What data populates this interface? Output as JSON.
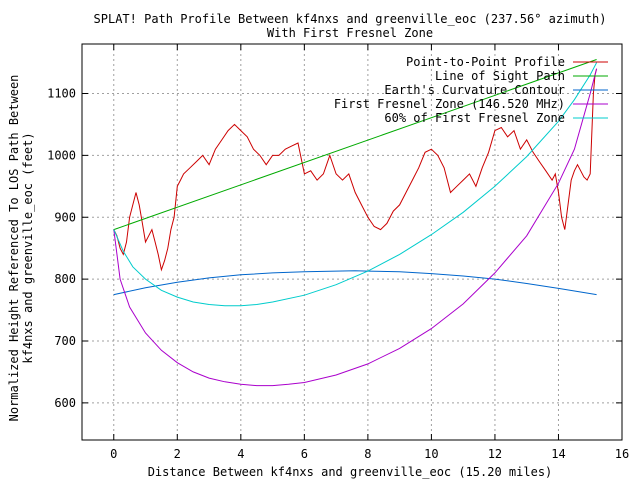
{
  "chart_data": {
    "type": "line",
    "title": "SPLAT! Path Profile Between kf4nxs and greenville_eoc (237.56° azimuth)",
    "subtitle": "With First Fresnel Zone",
    "xlabel": "Distance Between kf4nxs and greenville_eoc (15.20 miles)",
    "ylabel_line1": "Normalized Height Referenced To LOS Path Between",
    "ylabel_line2": "kf4nxs and greenville_eoc (feet)",
    "xlim": [
      -1,
      16
    ],
    "ylim": [
      540,
      1180
    ],
    "xticks": [
      0,
      2,
      4,
      6,
      8,
      10,
      12,
      14,
      16
    ],
    "yticks": [
      600,
      700,
      800,
      900,
      1000,
      1100
    ],
    "grid": true,
    "legend_position": "top-right",
    "series": [
      {
        "name": "Point-to-Point Profile",
        "color": "#cc0000",
        "x": [
          0,
          0.1,
          0.2,
          0.3,
          0.4,
          0.5,
          0.6,
          0.7,
          0.8,
          0.9,
          1.0,
          1.1,
          1.2,
          1.3,
          1.4,
          1.5,
          1.6,
          1.7,
          1.8,
          1.9,
          2.0,
          2.1,
          2.2,
          2.4,
          2.6,
          2.8,
          3.0,
          3.2,
          3.4,
          3.6,
          3.8,
          4.0,
          4.2,
          4.4,
          4.6,
          4.8,
          5.0,
          5.2,
          5.4,
          5.6,
          5.8,
          6.0,
          6.2,
          6.4,
          6.6,
          6.8,
          7.0,
          7.2,
          7.4,
          7.6,
          7.8,
          8.0,
          8.2,
          8.4,
          8.6,
          8.8,
          9.0,
          9.2,
          9.4,
          9.6,
          9.8,
          10.0,
          10.2,
          10.4,
          10.6,
          10.8,
          11.0,
          11.2,
          11.4,
          11.6,
          11.8,
          12.0,
          12.2,
          12.4,
          12.6,
          12.8,
          13.0,
          13.2,
          13.4,
          13.6,
          13.8,
          13.9,
          14.0,
          14.1,
          14.2,
          14.3,
          14.4,
          14.5,
          14.6,
          14.7,
          14.8,
          14.9,
          15.0,
          15.1,
          15.15,
          15.2
        ],
        "y": [
          880,
          870,
          850,
          840,
          860,
          900,
          920,
          940,
          920,
          890,
          860,
          870,
          880,
          860,
          840,
          815,
          830,
          850,
          880,
          900,
          950,
          960,
          970,
          980,
          990,
          1000,
          985,
          1010,
          1025,
          1040,
          1050,
          1040,
          1030,
          1010,
          1000,
          985,
          1000,
          1000,
          1010,
          1015,
          1020,
          970,
          975,
          960,
          970,
          1000,
          970,
          960,
          970,
          940,
          920,
          900,
          885,
          880,
          890,
          910,
          920,
          940,
          960,
          980,
          1005,
          1010,
          1000,
          980,
          940,
          950,
          960,
          970,
          950,
          980,
          1005,
          1040,
          1045,
          1030,
          1040,
          1010,
          1025,
          1005,
          990,
          975,
          960,
          970,
          940,
          900,
          880,
          920,
          960,
          975,
          985,
          975,
          965,
          960,
          970,
          1100,
          1130,
          1140
        ]
      },
      {
        "name": "Line of Sight Path",
        "color": "#00aa00",
        "x": [
          0,
          15.2
        ],
        "y": [
          880,
          1155
        ]
      },
      {
        "name": "Earth's Curvature Contour",
        "color": "#0066cc",
        "x": [
          0,
          1,
          2,
          3,
          4,
          5,
          6,
          7,
          7.6,
          8,
          9,
          10,
          11,
          12,
          13,
          14,
          15.2
        ],
        "y": [
          775,
          786,
          795,
          802,
          807,
          810,
          812,
          813,
          813.5,
          813,
          812,
          809,
          805,
          800,
          793,
          785,
          775
        ]
      },
      {
        "name": "First Fresnel Zone (146.520 MHz)",
        "color": "#aa00cc",
        "x": [
          0,
          0.2,
          0.5,
          1,
          1.5,
          2,
          2.5,
          3,
          3.5,
          4,
          4.5,
          5,
          5.5,
          6,
          7,
          8,
          9,
          10,
          11,
          12,
          13,
          14,
          14.5,
          15,
          15.2
        ],
        "y": [
          880,
          800,
          755,
          713,
          685,
          665,
          650,
          640,
          634,
          630,
          628,
          628,
          630,
          633,
          645,
          663,
          688,
          720,
          760,
          810,
          870,
          955,
          1010,
          1100,
          1140
        ]
      },
      {
        "name": "60% of First Fresnel Zone",
        "color": "#00cccc",
        "x": [
          0,
          0.3,
          0.6,
          1,
          1.5,
          2,
          2.5,
          3,
          3.5,
          4,
          4.5,
          5,
          6,
          7,
          8,
          9,
          10,
          11,
          12,
          13,
          14,
          14.5,
          15,
          15.2
        ],
        "y": [
          880,
          845,
          820,
          800,
          782,
          771,
          763,
          759,
          757,
          757,
          759,
          763,
          774,
          791,
          813,
          840,
          872,
          908,
          950,
          998,
          1055,
          1090,
          1130,
          1150
        ]
      }
    ]
  }
}
